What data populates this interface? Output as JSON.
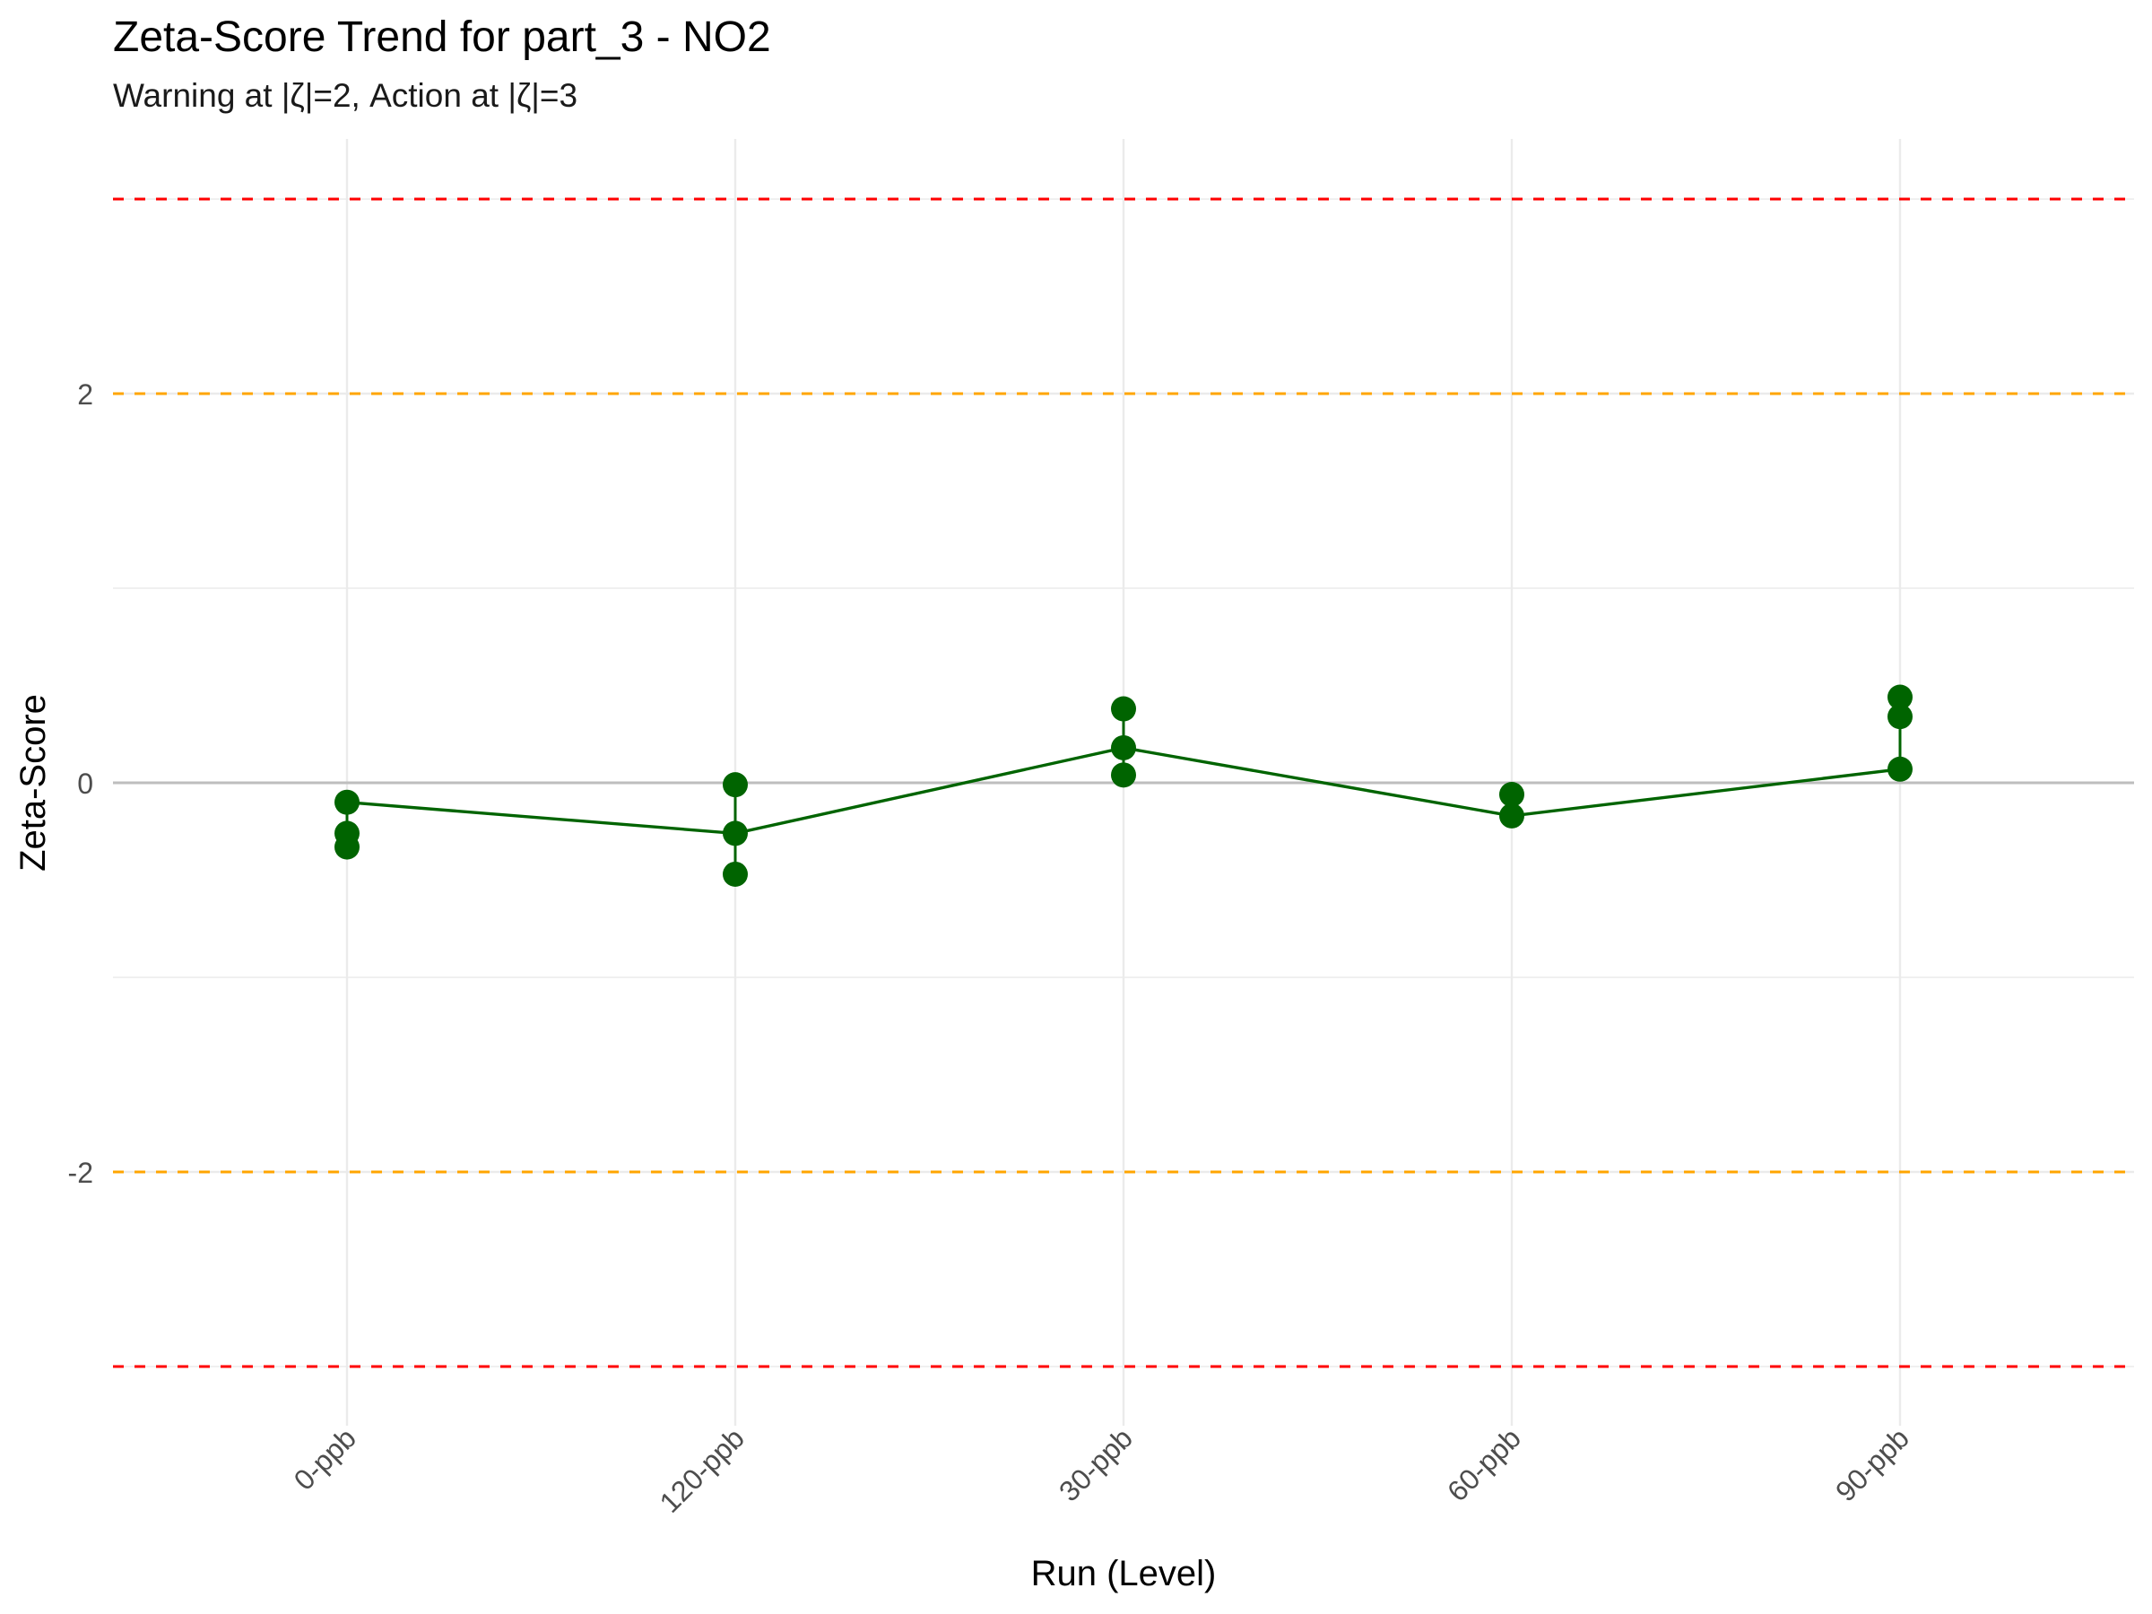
{
  "chart_data": {
    "type": "line",
    "title": "Zeta-Score Trend for part_3 - NO2",
    "subtitle": "Warning at |ζ|=2, Action at |ζ|=3",
    "xlabel": "Run (Level)",
    "ylabel": "Zeta-Score",
    "categories": [
      "0-ppb",
      "120-ppb",
      "30-ppb",
      "60-ppb",
      "90-ppb"
    ],
    "ylim": [
      -3.3,
      3.3
    ],
    "y_ticks": [
      "2",
      "0",
      "-2"
    ],
    "y_tick_values": [
      2,
      0,
      -2
    ],
    "grid": true,
    "series": [
      {
        "values": [
          -0.1,
          -0.26,
          0.18,
          -0.17,
          0.07
        ],
        "color": "#006400"
      }
    ],
    "points": [
      {
        "category": "0-ppb",
        "values": [
          -0.1,
          -0.26,
          -0.33
        ]
      },
      {
        "category": "120-ppb",
        "values": [
          -0.01,
          -0.26,
          -0.47
        ]
      },
      {
        "category": "30-ppb",
        "values": [
          0.38,
          0.18,
          0.04
        ]
      },
      {
        "category": "60-ppb",
        "values": [
          -0.06,
          -0.17
        ]
      },
      {
        "category": "90-ppb",
        "values": [
          0.44,
          0.34,
          0.07
        ]
      }
    ],
    "reference_lines": [
      {
        "y": 3,
        "color": "#ff0000",
        "style": "dashed"
      },
      {
        "y": 2,
        "color": "#ffa500",
        "style": "dashed"
      },
      {
        "y": 0,
        "color": "#bebebe",
        "style": "solid"
      },
      {
        "y": -2,
        "color": "#ffa500",
        "style": "dashed"
      },
      {
        "y": -3,
        "color": "#ff0000",
        "style": "dashed"
      }
    ],
    "point_color": "#006400",
    "grid_color": "#ebebeb"
  }
}
